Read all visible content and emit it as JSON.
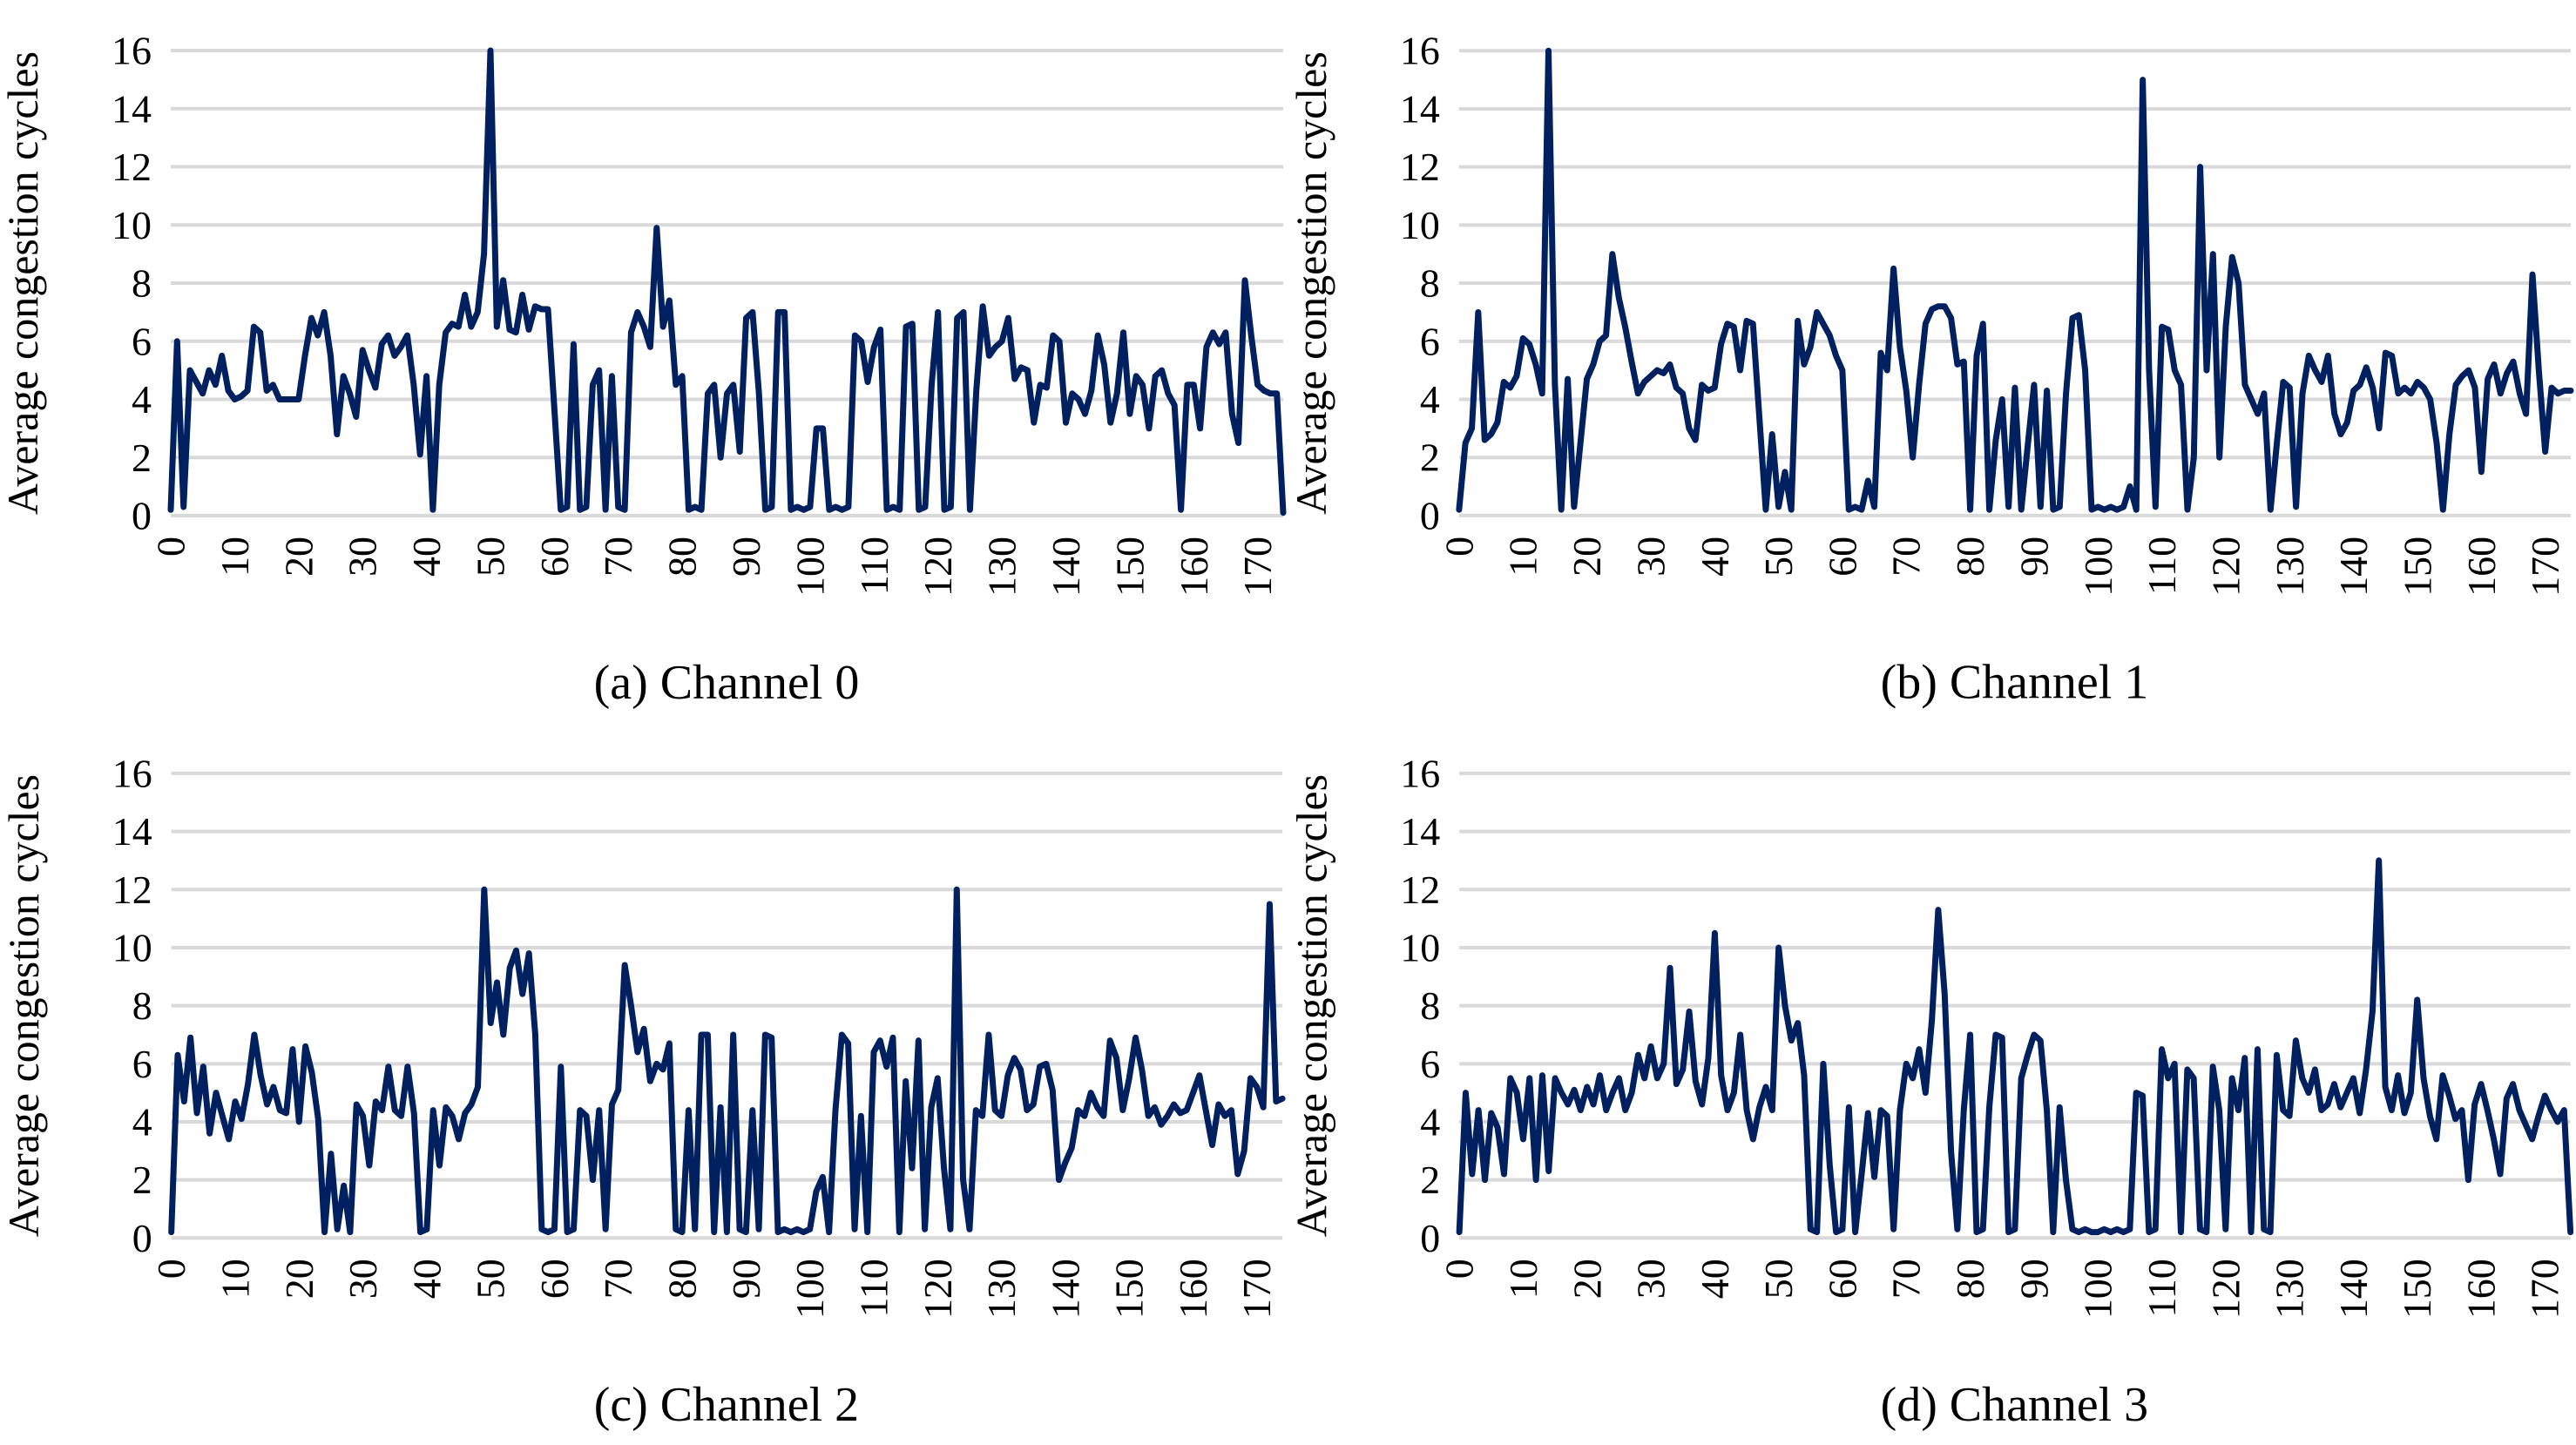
{
  "page": {
    "background": "#ffffff"
  },
  "colors": {
    "line": "#002060",
    "gridline": "#d9d9d9",
    "text": "#000000"
  },
  "axes": {
    "y_title": "Average congestion cycles",
    "y_ticks": [
      0,
      2,
      4,
      6,
      8,
      10,
      12,
      14,
      16
    ],
    "y_max": 16,
    "x_ticks": [
      0,
      10,
      20,
      30,
      40,
      50,
      60,
      70,
      80,
      90,
      100,
      110,
      120,
      130,
      140,
      150,
      160,
      170
    ],
    "x_max": 174,
    "x_tick_rotation": -90,
    "grid": "on",
    "legend": "none"
  },
  "chart_data": [
    {
      "type": "line",
      "name": "Channel 0",
      "caption": "(a) Channel 0",
      "ylabel": "Average congestion cycles",
      "ylim": [
        0,
        16
      ],
      "x_start": 0,
      "x_step": 1,
      "values": [
        0.2,
        6,
        0.3,
        5,
        4.6,
        4.2,
        5,
        4.5,
        5.5,
        4.3,
        4,
        4.1,
        4.3,
        6.5,
        6.3,
        4.3,
        4.5,
        4,
        4,
        4,
        4,
        5.5,
        6.8,
        6.2,
        7,
        5.5,
        2.8,
        4.8,
        4.2,
        3.4,
        5.7,
        5,
        4.4,
        5.9,
        6.2,
        5.5,
        5.8,
        6.2,
        4.5,
        2.1,
        4.8,
        0.2,
        4.5,
        6.3,
        6.6,
        6.5,
        7.6,
        6.5,
        7,
        9,
        16,
        6.5,
        8.1,
        6.4,
        6.3,
        7.6,
        6.4,
        7.2,
        7.1,
        7.1,
        3.7,
        0.2,
        0.3,
        5.9,
        0.2,
        0.3,
        4.5,
        5,
        0.2,
        4.8,
        0.3,
        0.2,
        6.3,
        7,
        6.5,
        5.8,
        9.9,
        6.5,
        7.4,
        4.5,
        4.8,
        0.2,
        0.3,
        0.2,
        4.2,
        4.5,
        2,
        4.2,
        4.5,
        2.2,
        6.8,
        7,
        4.2,
        0.2,
        0.3,
        7,
        7,
        0.2,
        0.3,
        0.2,
        0.3,
        3,
        3,
        0.2,
        0.3,
        0.2,
        0.3,
        6.2,
        6,
        4.6,
        5.8,
        6.4,
        0.2,
        0.3,
        0.2,
        6.5,
        6.6,
        0.2,
        0.3,
        4.5,
        7,
        0.2,
        0.3,
        6.8,
        7,
        0.2,
        4.3,
        7.2,
        5.5,
        5.8,
        6,
        6.8,
        4.7,
        5.1,
        5,
        3.2,
        4.5,
        4.4,
        6.2,
        6,
        3.2,
        4.2,
        4,
        3.5,
        4.3,
        6.2,
        5.2,
        3.2,
        4.2,
        6.3,
        3.5,
        4.8,
        4.5,
        3,
        4.8,
        5,
        4.2,
        3.8,
        0.2,
        4.5,
        4.5,
        3,
        5.8,
        6.3,
        5.9,
        6.3,
        3.5,
        2.5,
        8.1,
        6.2,
        4.5,
        4.3,
        4.2,
        4.2,
        0.1
      ]
    },
    {
      "type": "line",
      "name": "Channel 1",
      "caption": "(b) Channel 1",
      "ylabel": "Average congestion cycles",
      "ylim": [
        0,
        16
      ],
      "x_start": 0,
      "x_step": 1,
      "values": [
        0.2,
        2.5,
        3,
        7,
        2.6,
        2.8,
        3.2,
        4.6,
        4.4,
        4.8,
        6.1,
        5.9,
        5.2,
        4.2,
        16,
        4.5,
        0.2,
        4.7,
        0.3,
        2.5,
        4.7,
        5.2,
        6,
        6.2,
        9,
        7.5,
        6.5,
        5.3,
        4.2,
        4.6,
        4.8,
        5,
        4.9,
        5.2,
        4.4,
        4.2,
        3,
        2.6,
        4.5,
        4.3,
        4.4,
        5.9,
        6.6,
        6.5,
        5,
        6.7,
        6.6,
        3.4,
        0.2,
        2.8,
        0.3,
        1.5,
        0.2,
        6.7,
        5.2,
        5.8,
        7,
        6.6,
        6.2,
        5.5,
        5,
        0.2,
        0.3,
        0.2,
        1.2,
        0.3,
        5.6,
        5,
        8.5,
        5.8,
        4.3,
        2,
        4.5,
        6.6,
        7.1,
        7.2,
        7.2,
        6.8,
        5.2,
        5.3,
        0.2,
        5.5,
        6.6,
        0.2,
        2.6,
        4,
        0.3,
        4.4,
        0.2,
        2.4,
        4.5,
        0.3,
        4.3,
        0.2,
        0.3,
        4.2,
        6.8,
        6.9,
        5,
        0.2,
        0.3,
        0.2,
        0.3,
        0.2,
        0.3,
        1,
        0.2,
        15,
        5,
        0.3,
        6.5,
        6.4,
        5,
        4.5,
        0.2,
        2,
        12,
        5,
        9,
        2,
        6.5,
        8.9,
        8,
        4.5,
        4,
        3.5,
        4.2,
        0.2,
        2.5,
        4.6,
        4.4,
        0.3,
        4.2,
        5.5,
        5,
        4.6,
        5.5,
        3.5,
        2.8,
        3.2,
        4.3,
        4.5,
        5.1,
        4.4,
        3,
        5.6,
        5.5,
        4.2,
        4.4,
        4.2,
        4.6,
        4.4,
        4,
        2.5,
        0.2,
        2.8,
        4.5,
        4.8,
        5,
        4.4,
        1.5,
        4.7,
        5.2,
        4.2,
        4.9,
        5.3,
        4.2,
        3.5,
        8.3,
        5,
        2.2,
        4.4,
        4.2,
        4.3,
        4.3
      ]
    },
    {
      "type": "line",
      "name": "Channel 2",
      "caption": "(c) Channel 2",
      "ylabel": "Average congestion cycles",
      "ylim": [
        0,
        16
      ],
      "x_start": 0,
      "x_step": 1,
      "values": [
        0.2,
        6.3,
        4.7,
        6.9,
        4.3,
        5.9,
        3.6,
        5,
        4.2,
        3.4,
        4.7,
        4.1,
        5.3,
        7,
        5.6,
        4.6,
        5.2,
        4.4,
        4.3,
        6.5,
        4,
        6.6,
        5.7,
        4.1,
        0.2,
        2.9,
        0.3,
        1.8,
        0.2,
        4.6,
        4.2,
        2.5,
        4.7,
        4.4,
        5.9,
        4.4,
        4.2,
        5.9,
        4.3,
        0.2,
        0.3,
        4.4,
        2.5,
        4.5,
        4.2,
        3.4,
        4.3,
        4.6,
        5.2,
        12,
        7.4,
        8.8,
        7,
        9.3,
        9.9,
        8.4,
        9.8,
        7,
        0.3,
        0.2,
        0.3,
        5.9,
        0.2,
        0.3,
        4.4,
        4.2,
        2,
        4.4,
        0.3,
        4.6,
        5.1,
        9.4,
        8,
        6.4,
        7.2,
        5.4,
        6,
        5.8,
        6.7,
        0.3,
        0.2,
        4.4,
        0.3,
        7,
        7,
        0.2,
        4.5,
        0.2,
        7,
        0.3,
        0.2,
        4.4,
        0.3,
        7,
        6.9,
        0.2,
        0.3,
        0.2,
        0.3,
        0.2,
        0.3,
        1.6,
        2.1,
        0.2,
        4.4,
        7,
        6.7,
        0.3,
        4.2,
        0.2,
        6.4,
        6.8,
        5.9,
        6.9,
        0.2,
        5.4,
        2.4,
        6.8,
        0.3,
        4.5,
        5.5,
        2.4,
        0.3,
        12,
        2,
        0.3,
        4.4,
        4.2,
        7,
        4.4,
        4.2,
        5.6,
        6.2,
        5.8,
        4.4,
        4.6,
        5.9,
        6,
        5.1,
        2,
        2.6,
        3.1,
        4.4,
        4.2,
        5,
        4.5,
        4.2,
        6.8,
        6.2,
        4.4,
        5.5,
        6.9,
        5.8,
        4.2,
        4.5,
        3.9,
        4.2,
        4.6,
        4.3,
        4.4,
        5,
        5.6,
        4.4,
        3.2,
        4.6,
        4.2,
        4.4,
        2.2,
        3,
        5.5,
        5.2,
        4.5,
        11.5,
        4.7,
        4.8
      ]
    },
    {
      "type": "line",
      "name": "Channel 3",
      "caption": "(d) Channel 3",
      "ylabel": "Average congestion cycles",
      "ylim": [
        0,
        16
      ],
      "x_start": 0,
      "x_step": 1,
      "values": [
        0.2,
        5,
        2.2,
        4.4,
        2,
        4.3,
        3.8,
        2.2,
        5.5,
        5,
        3.4,
        5.5,
        2,
        5.6,
        2.3,
        5.5,
        5,
        4.6,
        5.1,
        4.4,
        5.2,
        4.6,
        5.6,
        4.4,
        5,
        5.5,
        4.4,
        5,
        6.3,
        5.5,
        6.6,
        5.5,
        6,
        9.3,
        5.3,
        5.8,
        7.8,
        5.4,
        4.6,
        6.2,
        10.5,
        5.6,
        4.4,
        5,
        7,
        4.4,
        3.4,
        4.5,
        5.2,
        4.4,
        10,
        8,
        6.8,
        7.4,
        5.6,
        0.3,
        0.2,
        6,
        2.5,
        0.2,
        0.3,
        4.5,
        0.2,
        2.2,
        4.3,
        2.1,
        4.4,
        4.2,
        0.3,
        4.4,
        6,
        5.5,
        6.5,
        5,
        7.5,
        11.3,
        8.4,
        3,
        0.3,
        4.4,
        7,
        0.2,
        0.3,
        4.5,
        7,
        6.9,
        0.2,
        0.3,
        5.5,
        6.3,
        7,
        6.8,
        4.4,
        0.2,
        4.5,
        2,
        0.3,
        0.2,
        0.3,
        0.2,
        0.2,
        0.3,
        0.2,
        0.3,
        0.2,
        0.3,
        5,
        4.9,
        0.2,
        0.3,
        6.5,
        5.5,
        6,
        0.2,
        5.8,
        5.5,
        0.3,
        0.2,
        5.9,
        4.4,
        0.3,
        5.5,
        4.4,
        6.2,
        0.2,
        6.5,
        0.3,
        0.2,
        6.3,
        4.4,
        4.2,
        6.8,
        5.5,
        5,
        5.8,
        4.4,
        4.6,
        5.3,
        4.5,
        5,
        5.5,
        4.3,
        5.8,
        7.8,
        13,
        5.2,
        4.4,
        5.6,
        4.3,
        5,
        8.2,
        5.5,
        4.2,
        3.4,
        5.6,
        4.9,
        4.1,
        4.4,
        2,
        4.6,
        5.3,
        4.4,
        3.4,
        2.2,
        4.8,
        5.3,
        4.4,
        3.9,
        3.4,
        4.2,
        4.9,
        4.4,
        4,
        4.4,
        0.2
      ]
    }
  ]
}
